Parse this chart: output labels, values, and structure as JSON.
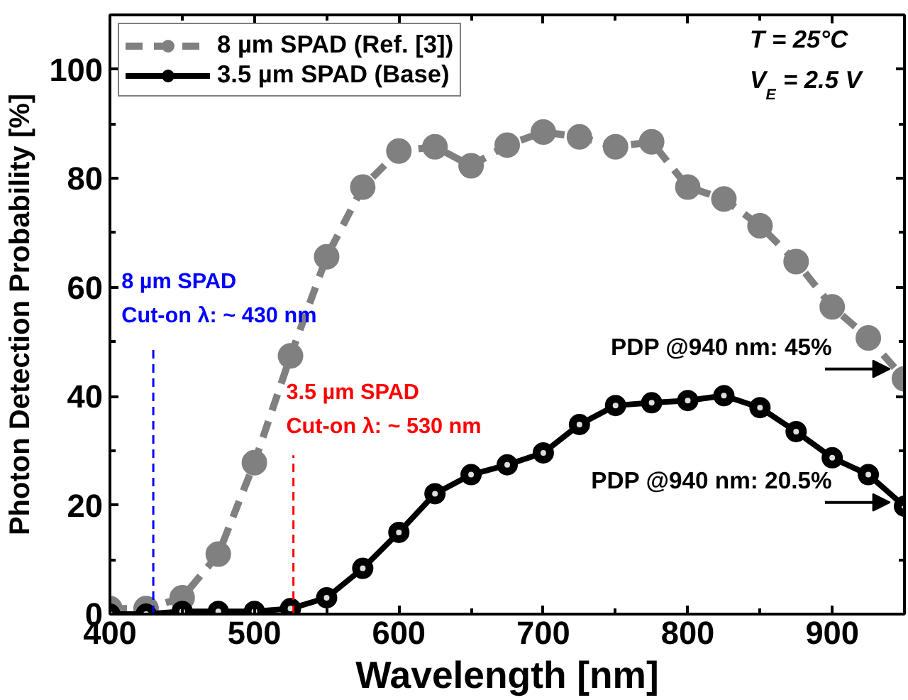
{
  "chart_data": {
    "type": "line",
    "xlabel": "Wavelength [nm]",
    "ylabel": "Photon Detection Probability [%]",
    "x": [
      400,
      425,
      450,
      475,
      500,
      525,
      550,
      575,
      600,
      625,
      650,
      675,
      700,
      725,
      750,
      775,
      800,
      825,
      850,
      875,
      900,
      925,
      950
    ],
    "series": [
      {
        "name": "8 µm SPAD (Ref. [3])",
        "color": "#808080",
        "line_style": "dashed",
        "values": [
          1,
          1,
          3,
          11,
          27.8,
          47.4,
          65.6,
          78.4,
          85,
          85.8,
          82.3,
          86.1,
          88.5,
          87.6,
          85.8,
          86.7,
          78.4,
          76.2,
          71.3,
          64.7,
          56.4,
          50.7,
          43.2
        ]
      },
      {
        "name": "3.5 µm SPAD (Base)",
        "color": "#000000",
        "line_style": "solid",
        "values": [
          0,
          0,
          0.5,
          0.5,
          0.5,
          1,
          3,
          8.4,
          15,
          22.1,
          25.6,
          27.4,
          29.6,
          34.8,
          38.3,
          38.8,
          39.2,
          40.1,
          37.9,
          33.5,
          28.7,
          25.6,
          19.8
        ]
      }
    ],
    "marker": "circle",
    "legend": "top left",
    "grid": false,
    "xlim": [
      400,
      950
    ],
    "ylim": [
      0,
      110
    ],
    "xticks": [
      400,
      500,
      600,
      700,
      800,
      900
    ],
    "yticks": [
      0,
      20,
      40,
      60,
      80,
      100
    ],
    "ref_lines": [
      {
        "axis": "x",
        "value": 430,
        "label": "8 µm SPAD\nCut-on λ: ~ 430 nm",
        "color": "#0000ff",
        "line_style": "dashed"
      },
      {
        "axis": "x",
        "value": 527,
        "label": "3.5 µm SPAD\nCut-on λ: ~ 530 nm",
        "color": "#ff0000",
        "line_style": "dashed"
      }
    ],
    "annotations": [
      "T = 25°C",
      "V$_{E}$ = 2.5 V",
      {
        "text": "PDP @940 nm: 45%",
        "x": 940,
        "y": 45
      },
      {
        "text": "PDP @940 nm: 20.5%",
        "x": 940,
        "y": 20.5
      }
    ]
  }
}
